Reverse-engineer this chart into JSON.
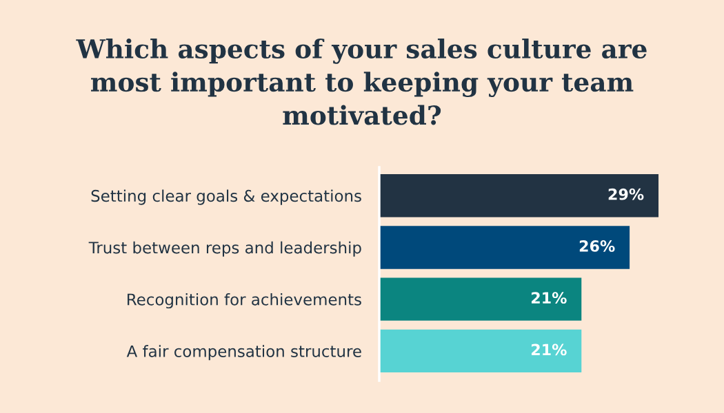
{
  "chart_data": {
    "type": "bar",
    "orientation": "horizontal",
    "title": "Which aspects of your sales culture are\nmost important to keeping your team\nmotivated?",
    "categories": [
      "Setting clear goals & expectations",
      "Trust between reps and leadership",
      "Recognition for achievements",
      "A fair compensation structure"
    ],
    "values": [
      29,
      26,
      21,
      21
    ],
    "colors": [
      "#223343",
      "#00497b",
      "#0b8580",
      "#57d3d3"
    ],
    "value_labels": [
      "29%",
      "26%",
      "21%",
      "21%"
    ],
    "tick_labels": "y"
  }
}
